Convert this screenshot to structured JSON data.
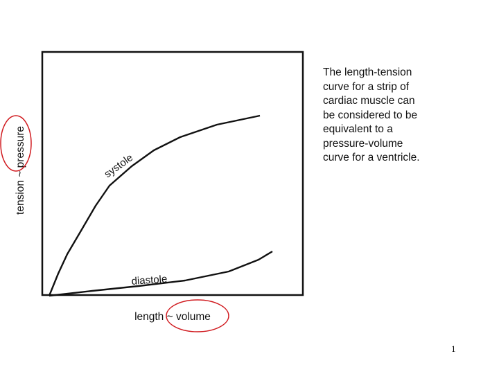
{
  "figure": {
    "y_axis_label": "tension ~ pressure",
    "x_axis_label": "length ~ volume",
    "curves": [
      {
        "name": "systole"
      },
      {
        "name": "diastole"
      }
    ],
    "highlight_color": "#d0191e",
    "highlighted_terms": [
      "pressure",
      "~ volume"
    ]
  },
  "description_lines": [
    "The length-tension",
    "curve for a strip of",
    "cardiac muscle can",
    "be considered to be",
    "equivalent to a",
    "pressure-volume",
    "curve for a ventricle."
  ],
  "page_number": "1"
}
